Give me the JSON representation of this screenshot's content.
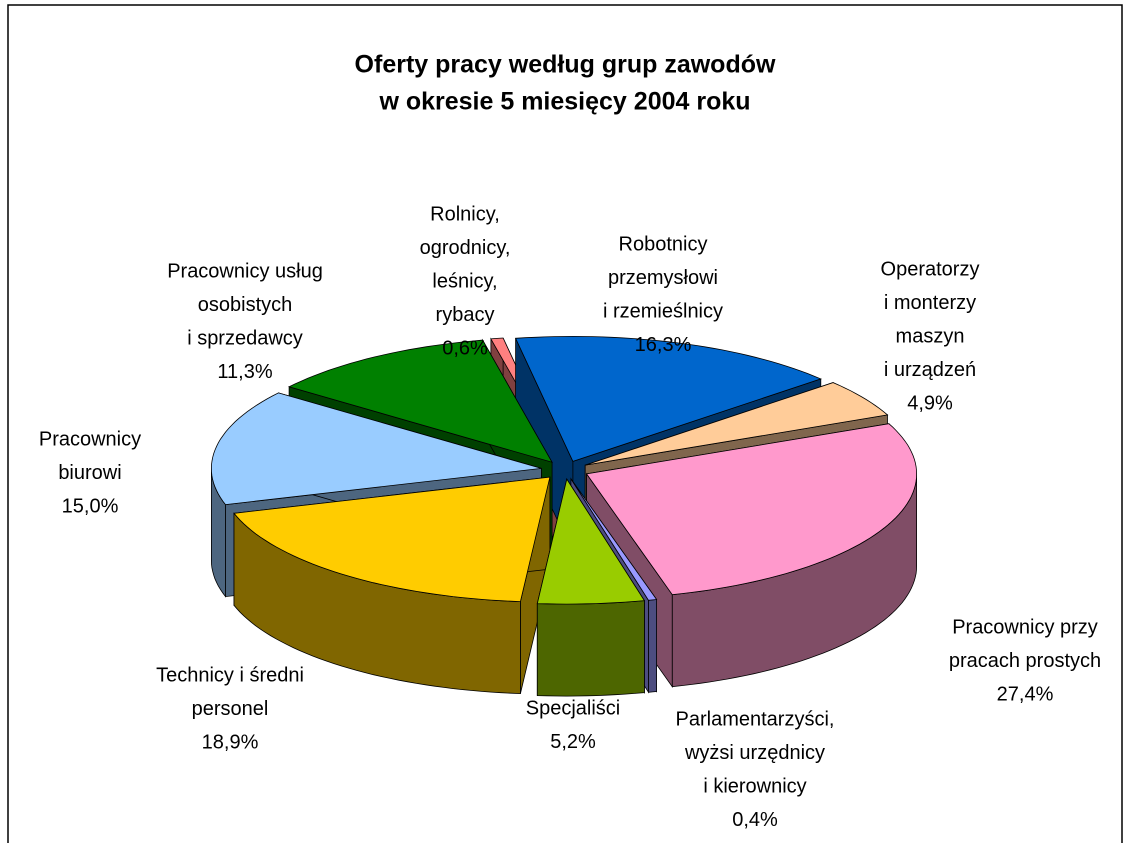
{
  "chart_data": {
    "type": "pie3d",
    "title": [
      "Oferty pracy według grup zawodów",
      "w okresie 5 miesięcy 2004 roku"
    ],
    "categories": [
      [
        "Robotnicy",
        "przemysłowi",
        "i rzemieślnicy"
      ],
      [
        "Operatorzy",
        "i monterzy",
        "maszyn",
        "i urządzeń"
      ],
      [
        "Pracownicy przy",
        "pracach prostych"
      ],
      [
        "Parlamentarzyści,",
        "wyżsi urzędnicy",
        "i kierownicy"
      ],
      [
        "Specjaliści"
      ],
      [
        "Technicy i średni",
        "personel"
      ],
      [
        "Pracownicy",
        "biurowi"
      ],
      [
        "Pracownicy usług",
        "osobistych",
        "i sprzedawcy"
      ],
      [
        "Rolnicy,",
        "ogrodnicy,",
        "leśnicy,",
        "rybacy"
      ]
    ],
    "values": [
      16.3,
      4.9,
      27.4,
      0.4,
      5.2,
      18.9,
      15.0,
      11.3,
      0.6
    ],
    "value_labels": [
      "16,3%",
      "4,9%",
      "27,4%",
      "0,4%",
      "5,2%",
      "18,9%",
      "15,0%",
      "11,3%",
      "0,6%"
    ],
    "colors": [
      "#0066cc",
      "#ffcc99",
      "#ff99cc",
      "#9999ff",
      "#99cc00",
      "#ffcc00",
      "#99ccff",
      "#008000",
      "#ff8080"
    ]
  }
}
